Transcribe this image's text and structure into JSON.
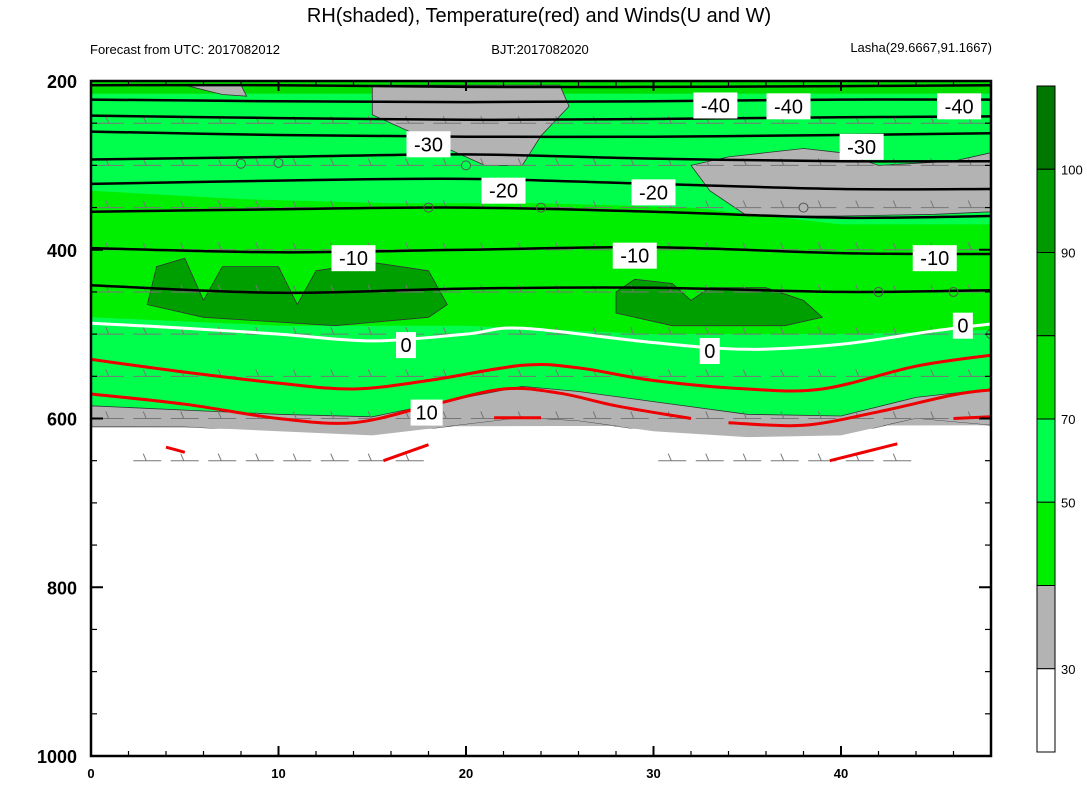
{
  "header": {
    "title": "RH(shaded), Temperature(red) and Winds(U and W)",
    "left": "Forecast from UTC: 2017082012",
    "center": "BJT:2017082020",
    "right": "Lasha(29.6667,91.1667)"
  },
  "chart_data": {
    "type": "contour",
    "x": {
      "ticks": [
        0,
        10,
        20,
        30,
        40
      ],
      "range": [
        0,
        48
      ]
    },
    "y": {
      "ticks": [
        200,
        400,
        600,
        800,
        1000
      ],
      "range": [
        200,
        1000
      ],
      "reversed": true
    },
    "colorbar": {
      "levels": [
        30,
        50,
        70,
        90,
        100
      ],
      "colors": [
        "#ffffff",
        "#b3b3b3",
        "#00ee00",
        "#00ff4d",
        "#00dd00",
        "#00b300",
        "#009900",
        "#007700"
      ]
    },
    "colors": {
      "gray": "#b3b3b3",
      "green_50_70": "#00ee00",
      "green_70_90": "#00ff4d",
      "green_90": "#00dd00",
      "green_dark": "#009f00",
      "temperature": "#ee0000",
      "zero_line": "#ffffff",
      "isotherm": "#000000"
    },
    "temperature_labels": [
      {
        "text": "-40",
        "x": 33.3,
        "p": 229
      },
      {
        "text": "-40",
        "x": 37.2,
        "p": 230
      },
      {
        "text": "-40",
        "x": 46.3,
        "p": 230
      },
      {
        "text": "-30",
        "x": 18.0,
        "p": 275
      },
      {
        "text": "-30",
        "x": 41.1,
        "p": 278
      },
      {
        "text": "-20",
        "x": 22.0,
        "p": 330
      },
      {
        "text": "-20",
        "x": 30.0,
        "p": 332
      },
      {
        "text": "-10",
        "x": 14.0,
        "p": 410
      },
      {
        "text": "-10",
        "x": 29.0,
        "p": 407
      },
      {
        "text": "-10",
        "x": 45.0,
        "p": 410
      },
      {
        "text": "0",
        "x": 16.8,
        "p": 513
      },
      {
        "text": "0",
        "x": 33.0,
        "p": 520
      },
      {
        "text": "0",
        "x": 46.5,
        "p": 490
      },
      {
        "text": "10",
        "x": 17.9,
        "p": 593
      }
    ],
    "isotherms": [
      [
        [
          0,
          205
        ],
        [
          10,
          205
        ],
        [
          20,
          207
        ],
        [
          30,
          207
        ],
        [
          40,
          206
        ],
        [
          48,
          205
        ]
      ],
      [
        [
          0,
          222
        ],
        [
          10,
          224
        ],
        [
          20,
          225
        ],
        [
          30,
          224
        ],
        [
          40,
          222
        ],
        [
          48,
          222
        ]
      ],
      [
        [
          0,
          241
        ],
        [
          10,
          244
        ],
        [
          20,
          246
        ],
        [
          30,
          245
        ],
        [
          40,
          243
        ],
        [
          48,
          242
        ]
      ],
      [
        [
          0,
          260
        ],
        [
          10,
          264
        ],
        [
          20,
          266
        ],
        [
          30,
          266
        ],
        [
          40,
          264
        ],
        [
          48,
          262
        ]
      ],
      [
        [
          0,
          293
        ],
        [
          10,
          290
        ],
        [
          20,
          287
        ],
        [
          30,
          292
        ],
        [
          40,
          295
        ],
        [
          48,
          295
        ]
      ],
      [
        [
          0,
          322
        ],
        [
          10,
          318
        ],
        [
          20,
          316
        ],
        [
          30,
          322
        ],
        [
          40,
          328
        ],
        [
          48,
          328
        ]
      ],
      [
        [
          0,
          355
        ],
        [
          10,
          352
        ],
        [
          20,
          350
        ],
        [
          30,
          355
        ],
        [
          40,
          362
        ],
        [
          48,
          360
        ]
      ],
      [
        [
          0,
          398
        ],
        [
          10,
          403
        ],
        [
          20,
          400
        ],
        [
          30,
          397
        ],
        [
          40,
          404
        ],
        [
          48,
          405
        ]
      ],
      [
        [
          0,
          442
        ],
        [
          10,
          451
        ],
        [
          20,
          446
        ],
        [
          30,
          445
        ],
        [
          40,
          450
        ],
        [
          48,
          448
        ]
      ]
    ],
    "zero_line": [
      [
        0,
        487
      ],
      [
        5,
        493
      ],
      [
        10,
        500
      ],
      [
        15,
        508
      ],
      [
        20,
        500
      ],
      [
        23,
        493
      ],
      [
        30,
        510
      ],
      [
        35,
        518
      ],
      [
        40,
        512
      ],
      [
        45,
        496
      ],
      [
        48,
        488
      ]
    ],
    "red_lines": [
      [
        [
          0,
          530
        ],
        [
          5,
          545
        ],
        [
          10,
          558
        ],
        [
          14,
          565
        ],
        [
          18,
          555
        ],
        [
          23,
          537
        ],
        [
          26,
          540
        ],
        [
          30,
          555
        ],
        [
          35,
          565
        ],
        [
          39,
          565
        ],
        [
          44,
          538
        ],
        [
          48,
          525
        ]
      ],
      [
        [
          0,
          571
        ],
        [
          5,
          583
        ],
        [
          10,
          600
        ],
        [
          14,
          605
        ],
        [
          18,
          585
        ],
        [
          22,
          565
        ],
        [
          25,
          570
        ],
        [
          28,
          585
        ],
        [
          32,
          600
        ]
      ],
      [
        [
          34,
          605
        ],
        [
          38,
          608
        ],
        [
          42,
          592
        ],
        [
          46,
          572
        ],
        [
          48,
          566
        ]
      ],
      [
        [
          4,
          634
        ],
        [
          5,
          640
        ]
      ],
      [
        [
          15.6,
          650
        ],
        [
          18,
          631
        ]
      ],
      [
        [
          21.5,
          599
        ],
        [
          24,
          599
        ]
      ],
      [
        [
          39.4,
          650
        ],
        [
          43,
          630
        ]
      ],
      [
        [
          46,
          600
        ],
        [
          48,
          598
        ]
      ]
    ],
    "gray_band": [
      [
        0,
        585
      ],
      [
        5,
        590
      ],
      [
        10,
        595
      ],
      [
        15,
        598
      ],
      [
        20,
        575
      ],
      [
        23,
        562
      ],
      [
        26,
        568
      ],
      [
        30,
        580
      ],
      [
        35,
        595
      ],
      [
        40,
        597
      ],
      [
        44,
        575
      ],
      [
        48,
        565
      ],
      [
        48,
        608
      ],
      [
        44,
        600
      ],
      [
        40,
        620
      ],
      [
        35,
        622
      ],
      [
        30,
        615
      ],
      [
        26,
        603
      ],
      [
        23,
        599
      ],
      [
        20,
        607
      ],
      [
        15,
        620
      ],
      [
        10,
        615
      ],
      [
        5,
        610
      ],
      [
        0,
        610
      ]
    ],
    "gray_top": [
      [
        15,
        205
      ],
      [
        25,
        205
      ],
      [
        25.5,
        230
      ],
      [
        24,
        265
      ],
      [
        23,
        300
      ],
      [
        21,
        300
      ],
      [
        18,
        270
      ],
      [
        15,
        240
      ]
    ],
    "gray_right": [
      [
        32,
        300
      ],
      [
        34,
        290
      ],
      [
        38,
        280
      ],
      [
        40,
        285
      ],
      [
        42,
        300
      ],
      [
        46,
        295
      ],
      [
        48,
        285
      ],
      [
        48,
        355
      ],
      [
        45,
        358
      ],
      [
        40,
        360
      ],
      [
        35,
        360
      ],
      [
        33,
        330
      ]
    ],
    "gray_topleft": [
      [
        5,
        205
      ],
      [
        8,
        205
      ],
      [
        8.3,
        218
      ],
      [
        7,
        216
      ]
    ],
    "dark_patches": [
      [
        [
          3,
          465
        ],
        [
          3.5,
          420
        ],
        [
          5,
          410
        ],
        [
          6,
          460
        ],
        [
          7,
          420
        ],
        [
          10,
          420
        ],
        [
          11,
          465
        ],
        [
          12,
          425
        ],
        [
          15,
          415
        ],
        [
          18,
          425
        ],
        [
          19,
          465
        ],
        [
          18,
          480
        ],
        [
          13,
          490
        ],
        [
          6,
          480
        ]
      ],
      [
        [
          28,
          450
        ],
        [
          29,
          435
        ],
        [
          31,
          440
        ],
        [
          32,
          460
        ],
        [
          33,
          445
        ],
        [
          36,
          445
        ],
        [
          38,
          460
        ],
        [
          39,
          480
        ],
        [
          37,
          490
        ],
        [
          31,
          490
        ],
        [
          28,
          475
        ]
      ]
    ],
    "light_band": [
      [
        0,
        330
      ],
      [
        8,
        340
      ],
      [
        16,
        345
      ],
      [
        24,
        345
      ],
      [
        32,
        350
      ],
      [
        40,
        370
      ],
      [
        48,
        370
      ],
      [
        48,
        495
      ],
      [
        40,
        500
      ],
      [
        30,
        500
      ],
      [
        20,
        490
      ],
      [
        10,
        490
      ],
      [
        0,
        480
      ]
    ],
    "wind_barbs": {
      "levels": [
        200,
        250,
        300,
        350,
        400,
        450,
        500,
        550,
        600,
        650
      ],
      "x": [
        1,
        3,
        5,
        7,
        9,
        11,
        13,
        15,
        17,
        19,
        21,
        23,
        25,
        27,
        29,
        31,
        33,
        35,
        37,
        39,
        41,
        43,
        45,
        47
      ]
    }
  }
}
